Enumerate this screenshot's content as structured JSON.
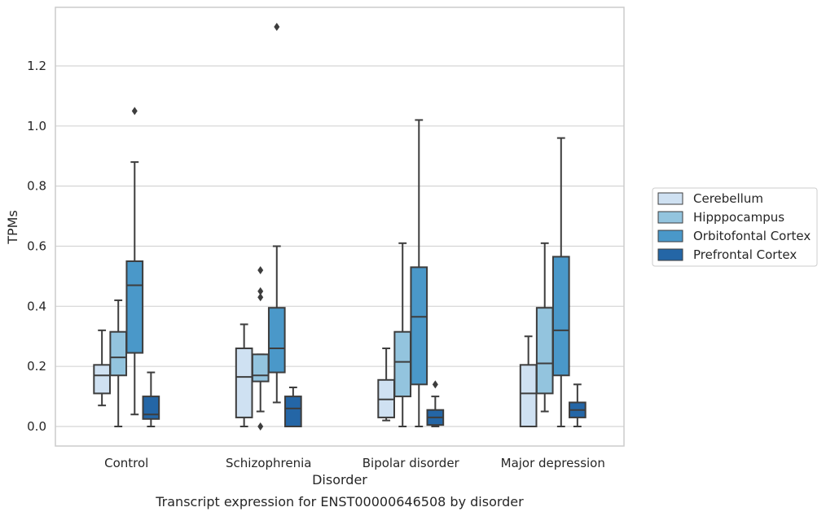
{
  "caption": "Transcript expression for ENST00000646508 by disorder",
  "chart_data": {
    "type": "box",
    "xlabel": "Disorder",
    "ylabel": "TPMs",
    "categories": [
      "Control",
      "Schizophrenia",
      "Bipolar disorder",
      "Major depression"
    ],
    "yticks": [
      "0.0",
      "0.2",
      "0.4",
      "0.6",
      "0.8",
      "1.0",
      "1.2"
    ],
    "ylim": [
      -0.065,
      1.395
    ],
    "grid": true,
    "legend_position": "right",
    "series": [
      {
        "name": "Cerebellum",
        "color": "#cfe1f2",
        "boxes": [
          {
            "whislo": 0.07,
            "q1": 0.11,
            "med": 0.17,
            "q3": 0.205,
            "whishi": 0.32,
            "fliers": []
          },
          {
            "whislo": 0.0,
            "q1": 0.03,
            "med": 0.165,
            "q3": 0.26,
            "whishi": 0.34,
            "fliers": []
          },
          {
            "whislo": 0.02,
            "q1": 0.03,
            "med": 0.09,
            "q3": 0.155,
            "whishi": 0.26,
            "fliers": []
          },
          {
            "whislo": 0.0,
            "q1": 0.0,
            "med": 0.11,
            "q3": 0.205,
            "whishi": 0.3,
            "fliers": []
          }
        ]
      },
      {
        "name": "Hipppocampus",
        "color": "#93c4de",
        "boxes": [
          {
            "whislo": 0.0,
            "q1": 0.17,
            "med": 0.23,
            "q3": 0.315,
            "whishi": 0.42,
            "fliers": []
          },
          {
            "whislo": 0.05,
            "q1": 0.15,
            "med": 0.17,
            "q3": 0.24,
            "whishi": 0.24,
            "fliers": [
              0.0,
              0.43,
              0.45,
              0.52
            ]
          },
          {
            "whislo": 0.0,
            "q1": 0.1,
            "med": 0.215,
            "q3": 0.315,
            "whishi": 0.61,
            "fliers": []
          },
          {
            "whislo": 0.05,
            "q1": 0.11,
            "med": 0.21,
            "q3": 0.395,
            "whishi": 0.61,
            "fliers": []
          }
        ]
      },
      {
        "name": "Orbitofontal Cortex",
        "color": "#4a98c9",
        "boxes": [
          {
            "whislo": 0.04,
            "q1": 0.245,
            "med": 0.47,
            "q3": 0.55,
            "whishi": 0.88,
            "fliers": [
              1.05
            ]
          },
          {
            "whislo": 0.08,
            "q1": 0.18,
            "med": 0.26,
            "q3": 0.395,
            "whishi": 0.6,
            "fliers": [
              1.33
            ]
          },
          {
            "whislo": 0.0,
            "q1": 0.14,
            "med": 0.365,
            "q3": 0.53,
            "whishi": 1.02,
            "fliers": []
          },
          {
            "whislo": 0.0,
            "q1": 0.17,
            "med": 0.32,
            "q3": 0.565,
            "whishi": 0.96,
            "fliers": []
          }
        ]
      },
      {
        "name": "Prefrontal Cortex",
        "color": "#2466a6",
        "boxes": [
          {
            "whislo": 0.0,
            "q1": 0.025,
            "med": 0.04,
            "q3": 0.1,
            "whishi": 0.18,
            "fliers": []
          },
          {
            "whislo": 0.0,
            "q1": 0.0,
            "med": 0.06,
            "q3": 0.1,
            "whishi": 0.13,
            "fliers": []
          },
          {
            "whislo": 0.0,
            "q1": 0.005,
            "med": 0.03,
            "q3": 0.055,
            "whishi": 0.1,
            "fliers": [
              0.14
            ]
          },
          {
            "whislo": 0.0,
            "q1": 0.03,
            "med": 0.055,
            "q3": 0.08,
            "whishi": 0.14,
            "fliers": []
          }
        ]
      }
    ]
  }
}
